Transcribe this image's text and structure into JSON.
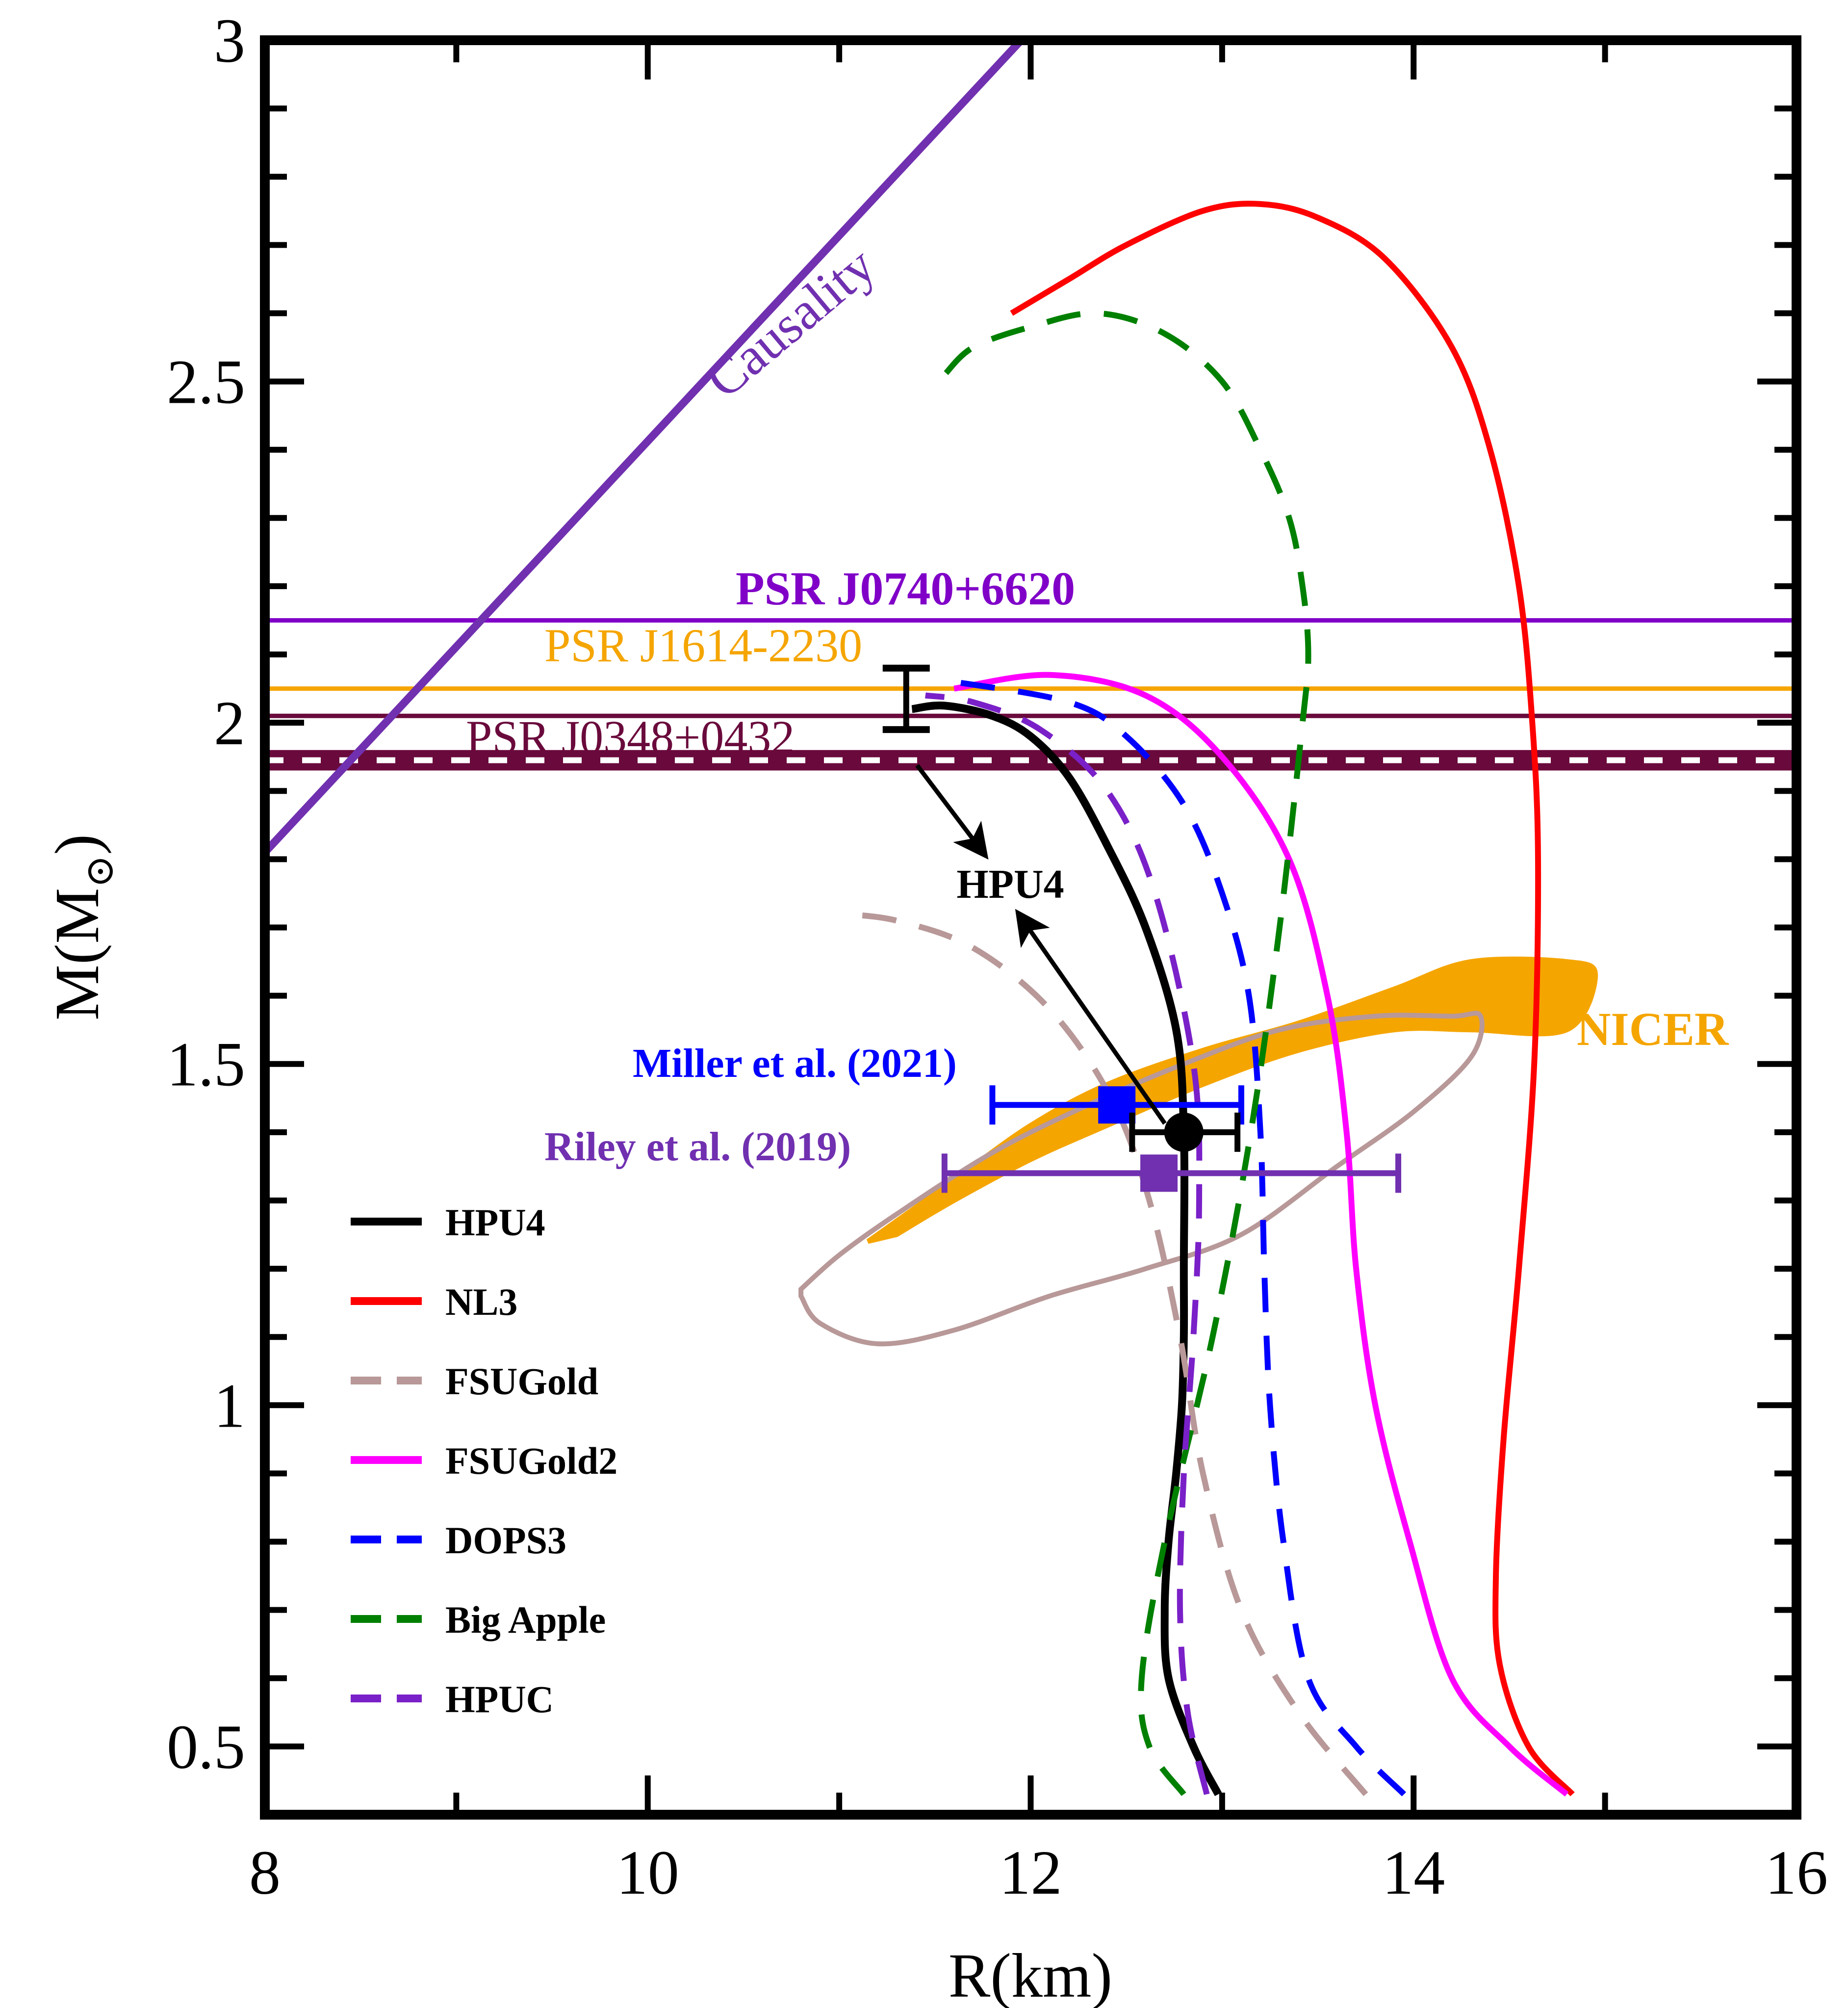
{
  "chart_data": {
    "type": "line",
    "title": "",
    "xlabel": "R(km)",
    "ylabel": "M(M",
    "ylabel_symbol": "⊙",
    "ylabel_close": ")",
    "xlim": [
      8,
      16
    ],
    "ylim": [
      0.4,
      3.0
    ],
    "x_ticks": [
      8,
      10,
      12,
      14,
      16
    ],
    "x_tick_labels": [
      "8",
      "10",
      "12",
      "14",
      "16"
    ],
    "y_ticks": [
      0.5,
      1,
      1.5,
      2,
      2.5,
      3
    ],
    "y_tick_labels": [
      "0.5",
      "1",
      "1.5",
      "2",
      "2.5",
      "3"
    ],
    "grid": false,
    "legend_position": "lower-left",
    "series": [
      {
        "name": "HPU4",
        "color": "#000000",
        "dash": "solid",
        "x": [
          12.98,
          12.85,
          12.72,
          12.7,
          12.72,
          12.76,
          12.79,
          12.8,
          12.8,
          12.8,
          12.76,
          12.6,
          12.4,
          12.2,
          12.0,
          11.8,
          11.55,
          11.38
        ],
        "y": [
          0.43,
          0.5,
          0.6,
          0.7,
          0.8,
          0.9,
          1.0,
          1.1,
          1.2,
          1.4,
          1.55,
          1.7,
          1.82,
          1.92,
          1.98,
          2.01,
          2.025,
          2.02
        ]
      },
      {
        "name": "NL3",
        "color": "#ff0000",
        "dash": "solid",
        "x": [
          14.83,
          14.6,
          14.45,
          14.43,
          14.47,
          14.55,
          14.63,
          14.65,
          14.62,
          14.55,
          14.4,
          14.2,
          13.85,
          13.5,
          13.2,
          12.9,
          12.5,
          12.2,
          11.9
        ],
        "y": [
          0.43,
          0.5,
          0.62,
          0.75,
          0.95,
          1.2,
          1.5,
          1.8,
          2.0,
          2.2,
          2.4,
          2.55,
          2.68,
          2.74,
          2.76,
          2.75,
          2.7,
          2.65,
          2.6
        ]
      },
      {
        "name": "FSUGold",
        "color": "#b89898",
        "dash": "dashed",
        "x": [
          13.75,
          13.4,
          13.1,
          12.9,
          12.78,
          12.62,
          12.42,
          12.1,
          11.7,
          11.3,
          11.0
        ],
        "y": [
          0.43,
          0.55,
          0.7,
          0.9,
          1.1,
          1.3,
          1.45,
          1.58,
          1.67,
          1.71,
          1.72
        ]
      },
      {
        "name": "FSUGold2",
        "color": "#ff00ff",
        "dash": "solid",
        "x": [
          14.8,
          14.5,
          14.2,
          13.98,
          13.8,
          13.7,
          13.65,
          13.55,
          13.35,
          13.0,
          12.6,
          12.1,
          11.6
        ],
        "y": [
          0.43,
          0.5,
          0.6,
          0.8,
          1.0,
          1.2,
          1.4,
          1.6,
          1.8,
          1.95,
          2.04,
          2.07,
          2.05
        ]
      },
      {
        "name": "DOPS3",
        "color": "#0000ff",
        "dash": "dashed",
        "x": [
          13.95,
          13.7,
          13.45,
          13.32,
          13.25,
          13.22,
          13.2,
          13.14,
          13.0,
          12.8,
          12.5,
          12.2,
          11.6
        ],
        "y": [
          0.43,
          0.5,
          0.6,
          0.8,
          1.0,
          1.2,
          1.4,
          1.6,
          1.75,
          1.88,
          1.98,
          2.03,
          2.06
        ]
      },
      {
        "name": "Big Apple",
        "color": "#008000",
        "dash": "dashed",
        "x": [
          12.8,
          12.62,
          12.58,
          12.7,
          12.95,
          13.15,
          13.3,
          13.42,
          13.45,
          13.42,
          13.35,
          13.2,
          13.0,
          12.7,
          12.35,
          12.0,
          11.7,
          11.55
        ],
        "y": [
          0.43,
          0.5,
          0.6,
          0.8,
          1.1,
          1.4,
          1.7,
          2.0,
          2.1,
          2.2,
          2.3,
          2.4,
          2.5,
          2.57,
          2.6,
          2.58,
          2.55,
          2.51
        ]
      },
      {
        "name": "HPUC",
        "color": "#7a20c8",
        "dash": "dashed",
        "x": [
          12.92,
          12.82,
          12.78,
          12.8,
          12.85,
          12.88,
          12.85,
          12.65,
          12.4,
          12.05,
          11.7,
          11.45
        ],
        "y": [
          0.43,
          0.55,
          0.7,
          0.9,
          1.1,
          1.3,
          1.5,
          1.75,
          1.9,
          1.99,
          2.03,
          2.04
        ]
      }
    ],
    "causality_line": {
      "label": "Causality",
      "color": "#7030b0",
      "x": [
        8.0,
        11.95
      ],
      "y": [
        1.81,
        3.0
      ]
    },
    "pulsar_constraints": [
      {
        "label": "PSR J0740+6620",
        "color": "#8000c8",
        "mass": 2.15
      },
      {
        "label": "PSR J1614-2230",
        "color": "#f5a500",
        "mass": 2.05
      },
      {
        "label": "PSR J0348+0432",
        "color": "#6a0a3c",
        "mass": 2.01,
        "band_lower": 1.93,
        "band_upper": 1.96
      }
    ],
    "nicer_region": {
      "label": "NICER",
      "color": "#f5a500",
      "contour_color": "#b89898",
      "orange_outer": [
        [
          11.15,
          1.24
        ],
        [
          11.3,
          1.27
        ],
        [
          11.6,
          1.33
        ],
        [
          12.0,
          1.41
        ],
        [
          12.4,
          1.47
        ],
        [
          12.9,
          1.52
        ],
        [
          13.4,
          1.56
        ],
        [
          13.9,
          1.61
        ],
        [
          14.3,
          1.65
        ],
        [
          14.8,
          1.65
        ],
        [
          14.95,
          1.63
        ],
        [
          14.8,
          1.55
        ],
        [
          14.3,
          1.55
        ],
        [
          13.9,
          1.55
        ],
        [
          13.4,
          1.52
        ],
        [
          12.9,
          1.47
        ],
        [
          12.4,
          1.41
        ],
        [
          12.0,
          1.36
        ],
        [
          11.6,
          1.3
        ],
        [
          11.3,
          1.25
        ]
      ],
      "contour": [
        [
          10.8,
          1.16
        ],
        [
          10.9,
          1.12
        ],
        [
          11.2,
          1.09
        ],
        [
          11.6,
          1.11
        ],
        [
          12.1,
          1.16
        ],
        [
          12.6,
          1.2
        ],
        [
          13.1,
          1.25
        ],
        [
          13.6,
          1.35
        ],
        [
          14.0,
          1.43
        ],
        [
          14.3,
          1.51
        ],
        [
          14.35,
          1.57
        ],
        [
          14.2,
          1.57
        ],
        [
          13.8,
          1.57
        ],
        [
          13.3,
          1.55
        ],
        [
          12.8,
          1.5
        ],
        [
          12.3,
          1.44
        ],
        [
          11.8,
          1.37
        ],
        [
          11.3,
          1.28
        ],
        [
          11.0,
          1.22
        ],
        [
          10.8,
          1.17
        ]
      ]
    },
    "measurements": [
      {
        "label": "Miller et  al. (2021)",
        "color": "#0000ff",
        "marker": "square",
        "x": 12.45,
        "y": 1.44,
        "xerr_low": 0.65,
        "xerr_high": 0.65
      },
      {
        "label": "Riley et  al. (2019)",
        "color": "#7030b0",
        "marker": "square",
        "x": 12.67,
        "y": 1.34,
        "xerr_low": 1.12,
        "xerr_high": 1.25
      },
      {
        "label": "HPU4",
        "color": "#000000",
        "marker": "circle",
        "x": 12.8,
        "y": 1.4,
        "xerr_low": 0.27,
        "xerr_high": 0.28
      },
      {
        "label": "HPU4",
        "color": "#000000",
        "marker": "errorbar",
        "x": 11.35,
        "y": 2.03,
        "yerr_low": 0.04,
        "yerr_high": 0.05
      }
    ],
    "annotations": [
      {
        "text": "HPU4",
        "x": 12.05,
        "y": 1.75,
        "color": "#000000"
      }
    ]
  }
}
